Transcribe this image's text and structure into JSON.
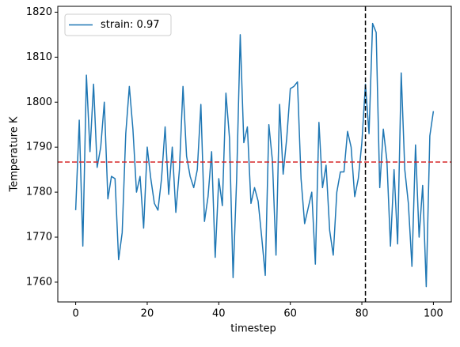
{
  "chart_data": {
    "type": "line",
    "xlabel": "timestep",
    "ylabel": "Temperature K",
    "x": [
      0,
      1,
      2,
      3,
      4,
      5,
      6,
      7,
      8,
      9,
      10,
      11,
      12,
      13,
      14,
      15,
      16,
      17,
      18,
      19,
      20,
      21,
      22,
      23,
      24,
      25,
      26,
      27,
      28,
      29,
      30,
      31,
      32,
      33,
      34,
      35,
      36,
      37,
      38,
      39,
      40,
      41,
      42,
      43,
      44,
      45,
      46,
      47,
      48,
      49,
      50,
      51,
      52,
      53,
      54,
      55,
      56,
      57,
      58,
      59,
      60,
      61,
      62,
      63,
      64,
      65,
      66,
      67,
      68,
      69,
      70,
      71,
      72,
      73,
      74,
      75,
      76,
      77,
      78,
      79,
      80,
      81,
      82,
      83,
      84,
      85,
      86,
      87,
      88,
      89,
      90,
      91,
      92,
      93,
      94,
      95,
      96,
      97,
      98,
      99,
      100
    ],
    "series": [
      {
        "name": "strain: 0.97",
        "color": "#1f77b4",
        "values": [
          1776,
          1796,
          1768,
          1806,
          1789,
          1804,
          1785.5,
          1790,
          1800,
          1778.5,
          1783.5,
          1783,
          1765,
          1771,
          1793,
          1803.5,
          1794,
          1780,
          1783.5,
          1772,
          1790,
          1783,
          1777.5,
          1776,
          1783,
          1794.5,
          1779.5,
          1790,
          1775.5,
          1785,
          1803.5,
          1788,
          1783.5,
          1781,
          1785,
          1799.5,
          1773.5,
          1779,
          1789,
          1765.5,
          1783,
          1777,
          1802,
          1792,
          1761,
          1783,
          1815,
          1791,
          1794.5,
          1777.5,
          1781,
          1778,
          1770,
          1761.5,
          1795,
          1787,
          1766,
          1799.5,
          1784,
          1792,
          1803,
          1803.5,
          1804.5,
          1783,
          1773,
          1776.5,
          1780,
          1764,
          1795.5,
          1781,
          1786,
          1771.5,
          1766,
          1780,
          1784.5,
          1784.5,
          1793.5,
          1790,
          1779,
          1783,
          1791,
          1804,
          1793,
          1817.5,
          1815.5,
          1781,
          1794,
          1787,
          1768,
          1785,
          1768.5,
          1806.5,
          1785,
          1777.5,
          1763.5,
          1790.5,
          1770,
          1781.5,
          1759,
          1792.5,
          1798
        ]
      }
    ],
    "hline": {
      "value": 1786.7,
      "color": "#d62728"
    },
    "vline": {
      "value": 81,
      "color": "#000000"
    },
    "xlim": [
      -5,
      105
    ],
    "ylim": [
      1755.6,
      1821.3
    ],
    "xticks": [
      0,
      20,
      40,
      60,
      80,
      100
    ],
    "yticks": [
      1760,
      1770,
      1780,
      1790,
      1800,
      1810,
      1820
    ],
    "legend": "upper left"
  }
}
